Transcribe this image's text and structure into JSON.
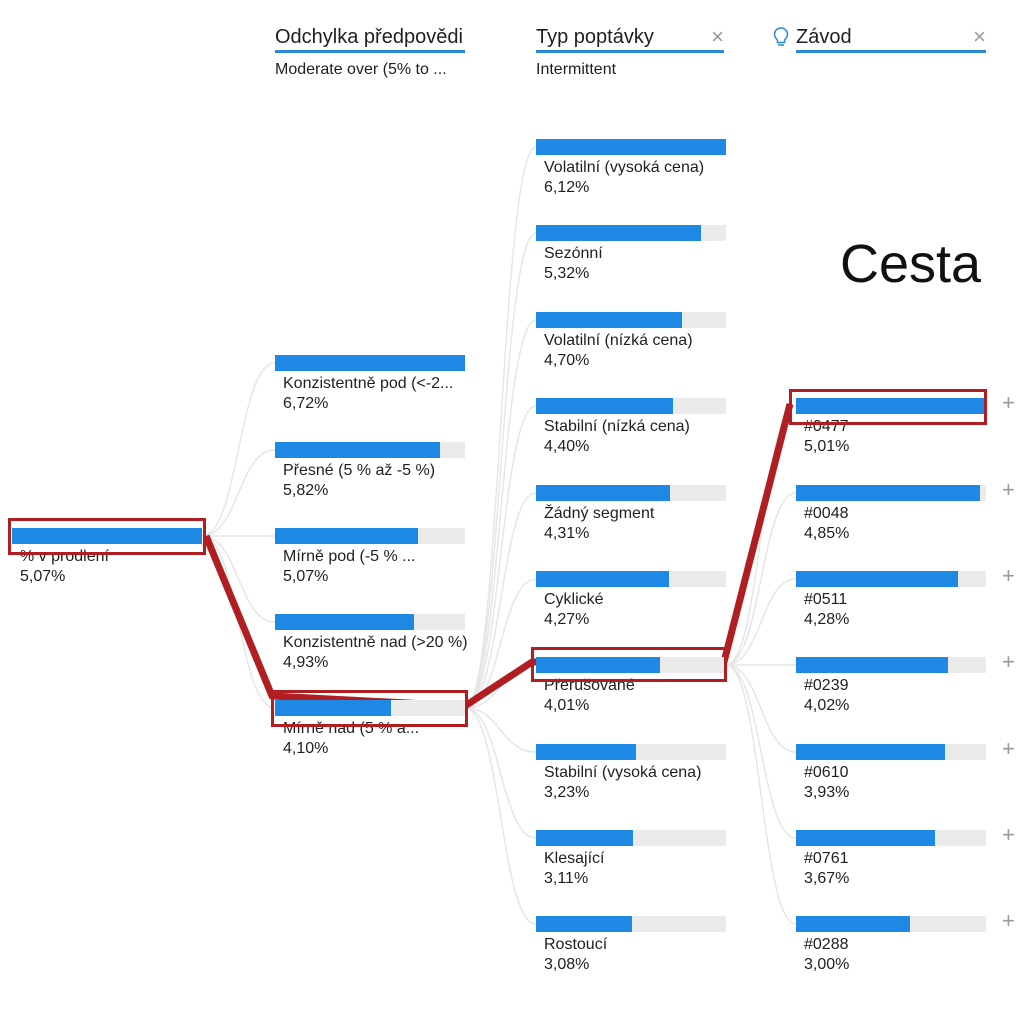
{
  "headers": [
    {
      "title": "Odchylka předpovědi",
      "subtitle": "Moderate over (5% to ..."
    },
    {
      "title": "Typ poptávky",
      "subtitle": "Intermittent"
    },
    {
      "title": "Závod",
      "subtitle": ""
    }
  ],
  "root": {
    "label": "% v prodlení",
    "value": "5,07%",
    "fraction": 1.0
  },
  "columns": [
    {
      "nodes": [
        {
          "label": "Konzistentně pod (<-2...",
          "value": "6,72%",
          "fraction": 1.0
        },
        {
          "label": "Přesné (5 % až -5 %)",
          "value": "5,82%",
          "fraction": 0.866
        },
        {
          "label": "Mírně pod (-5 % ...",
          "value": "5,07%",
          "fraction": 0.754
        },
        {
          "label": "Konzistentně nad (>20 %)",
          "value": "4,93%",
          "fraction": 0.734
        },
        {
          "label": "Mírně nad (5 % a...",
          "value": "4,10%",
          "fraction": 0.61
        }
      ]
    },
    {
      "nodes": [
        {
          "label": "Volatilní (vysoká cena)",
          "value": "6,12%",
          "fraction": 1.0
        },
        {
          "label": "Sezónní",
          "value": "5,32%",
          "fraction": 0.869
        },
        {
          "label": "Volatilní (nízká cena)",
          "value": "4,70%",
          "fraction": 0.768
        },
        {
          "label": "Stabilní (nízká cena)",
          "value": "4,40%",
          "fraction": 0.719
        },
        {
          "label": "Žádný segment",
          "value": "4,31%",
          "fraction": 0.704
        },
        {
          "label": "Cyklické",
          "value": "4,27%",
          "fraction": 0.698
        },
        {
          "label": "Přerušované",
          "value": "4,01%",
          "fraction": 0.655
        },
        {
          "label": "Stabilní (vysoká cena)",
          "value": "3,23%",
          "fraction": 0.528
        },
        {
          "label": "Klesající",
          "value": "3,11%",
          "fraction": 0.508
        },
        {
          "label": "Rostoucí",
          "value": "3,08%",
          "fraction": 0.503
        }
      ]
    },
    {
      "nodes": [
        {
          "label": "#0477",
          "value": "5,01%",
          "fraction": 1.0
        },
        {
          "label": "#0048",
          "value": "4,85%",
          "fraction": 0.968
        },
        {
          "label": "#0511",
          "value": "4,28%",
          "fraction": 0.854
        },
        {
          "label": "#0239",
          "value": "4,02%",
          "fraction": 0.802
        },
        {
          "label": "#0610",
          "value": "3,93%",
          "fraction": 0.784
        },
        {
          "label": "#0761",
          "value": "3,67%",
          "fraction": 0.733
        },
        {
          "label": "#0288",
          "value": "3,00%",
          "fraction": 0.599
        }
      ]
    }
  ],
  "selected_path": [
    4,
    6,
    0
  ],
  "annotation": "Cesta",
  "colors": {
    "bar": "#1e88e5",
    "track": "#ebebeb",
    "highlight": "#b01e22",
    "header_underline": "#2b88d8"
  },
  "icons": {
    "remove": "close-icon",
    "expand": "plus-icon",
    "ai_split": "lightbulb-icon"
  }
}
